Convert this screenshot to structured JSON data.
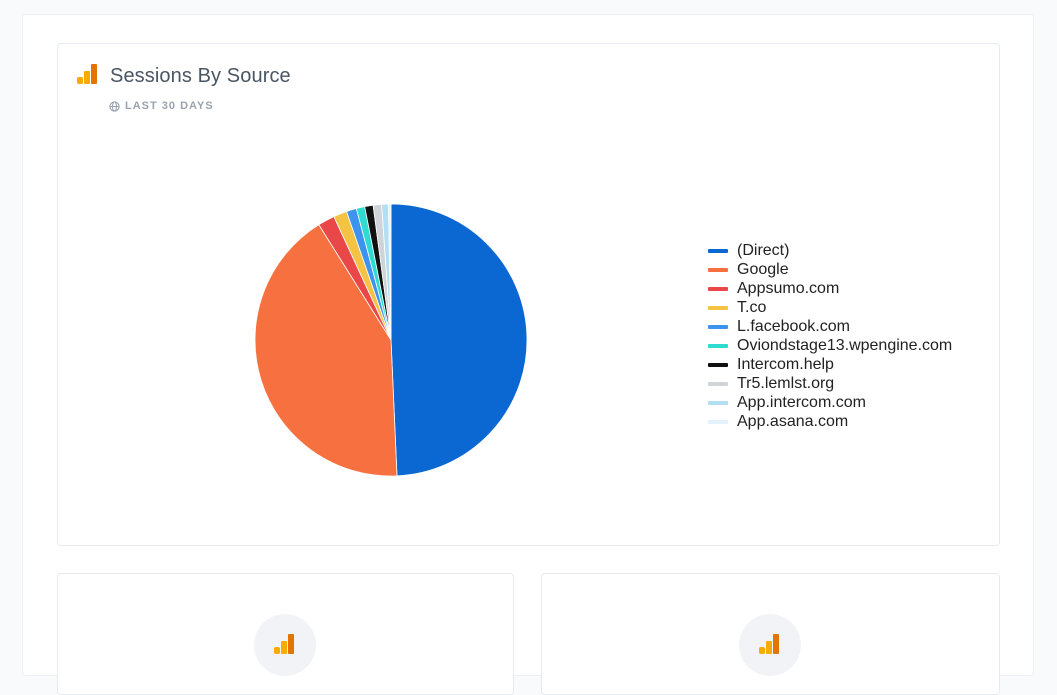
{
  "card": {
    "title": "Sessions By Source",
    "subtitle": "LAST 30 DAYS",
    "title_icon": "google-analytics-icon",
    "subtitle_icon": "globe-icon"
  },
  "chart_data": {
    "type": "pie",
    "title": "",
    "legend_position": "right",
    "labels": [
      "(Direct)",
      "Google",
      "Appsumo.com",
      "T.co",
      "L.facebook.com",
      "Oviondstage13.wpengine.com",
      "Intercom.help",
      "Tr5.lemlst.org",
      "App.intercom.com",
      "App.asana.com"
    ],
    "values": [
      49.3,
      41.8,
      2.0,
      1.6,
      1.2,
      1.0,
      1.0,
      1.0,
      0.8,
      0.3
    ],
    "colors": [
      "#0b67d1",
      "#f7703f",
      "#ea4848",
      "#f5c344",
      "#3c94ef",
      "#2fdad0",
      "#111111",
      "#cfd4d9",
      "#b2dff2",
      "#e2f2fb"
    ]
  },
  "bottom_cards": [
    {
      "icon": "google-analytics-icon"
    },
    {
      "icon": "google-analytics-icon"
    }
  ]
}
